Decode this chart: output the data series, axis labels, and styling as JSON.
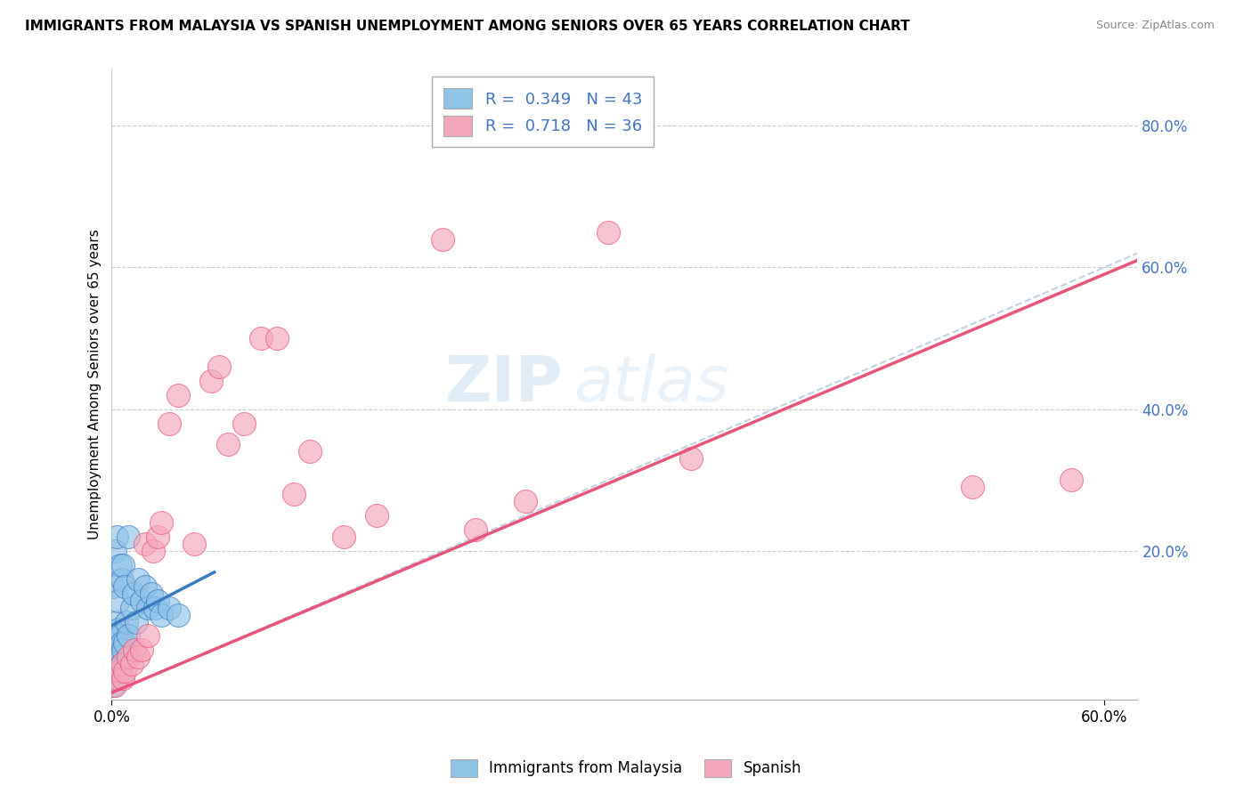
{
  "title": "IMMIGRANTS FROM MALAYSIA VS SPANISH UNEMPLOYMENT AMONG SENIORS OVER 65 YEARS CORRELATION CHART",
  "source": "Source: ZipAtlas.com",
  "ylabel": "Unemployment Among Seniors over 65 years",
  "legend_label1": "Immigrants from Malaysia",
  "legend_label2": "Spanish",
  "r1": 0.349,
  "n1": 43,
  "r2": 0.718,
  "n2": 36,
  "xlim": [
    0.0,
    0.62
  ],
  "ylim": [
    -0.01,
    0.88
  ],
  "color_blue": "#8fc3e8",
  "color_pink": "#f4a7bb",
  "color_blue_line": "#3a7bbf",
  "color_pink_line": "#e8547a",
  "color_diag": "#b0c8e0",
  "watermark_zip": "ZIP",
  "watermark_atlas": "atlas",
  "scatter_blue_x": [
    0.001,
    0.001,
    0.001,
    0.001,
    0.002,
    0.002,
    0.002,
    0.002,
    0.002,
    0.003,
    0.003,
    0.003,
    0.003,
    0.004,
    0.004,
    0.004,
    0.004,
    0.005,
    0.005,
    0.005,
    0.006,
    0.006,
    0.006,
    0.007,
    0.007,
    0.008,
    0.008,
    0.009,
    0.01,
    0.01,
    0.012,
    0.013,
    0.015,
    0.016,
    0.018,
    0.02,
    0.022,
    0.024,
    0.026,
    0.028,
    0.03,
    0.035,
    0.04
  ],
  "scatter_blue_y": [
    0.01,
    0.02,
    0.03,
    0.15,
    0.02,
    0.04,
    0.06,
    0.08,
    0.2,
    0.05,
    0.07,
    0.1,
    0.22,
    0.03,
    0.06,
    0.09,
    0.13,
    0.05,
    0.08,
    0.18,
    0.04,
    0.07,
    0.16,
    0.06,
    0.18,
    0.07,
    0.15,
    0.1,
    0.08,
    0.22,
    0.12,
    0.14,
    0.1,
    0.16,
    0.13,
    0.15,
    0.12,
    0.14,
    0.12,
    0.13,
    0.11,
    0.12,
    0.11
  ],
  "scatter_pink_x": [
    0.002,
    0.003,
    0.005,
    0.006,
    0.007,
    0.008,
    0.01,
    0.012,
    0.014,
    0.016,
    0.018,
    0.02,
    0.022,
    0.025,
    0.028,
    0.03,
    0.035,
    0.04,
    0.05,
    0.06,
    0.065,
    0.07,
    0.08,
    0.09,
    0.1,
    0.11,
    0.12,
    0.14,
    0.16,
    0.2,
    0.22,
    0.25,
    0.3,
    0.35,
    0.52,
    0.58
  ],
  "scatter_pink_y": [
    0.01,
    0.02,
    0.03,
    0.04,
    0.02,
    0.03,
    0.05,
    0.04,
    0.06,
    0.05,
    0.06,
    0.21,
    0.08,
    0.2,
    0.22,
    0.24,
    0.38,
    0.42,
    0.21,
    0.44,
    0.46,
    0.35,
    0.38,
    0.5,
    0.5,
    0.28,
    0.34,
    0.22,
    0.25,
    0.64,
    0.23,
    0.27,
    0.65,
    0.33,
    0.29,
    0.3
  ],
  "blue_line_x0": 0.0,
  "blue_line_y0": 0.095,
  "blue_line_x1": 0.062,
  "blue_line_y1": 0.17,
  "pink_line_x0": 0.0,
  "pink_line_y0": 0.0,
  "pink_line_x1": 0.62,
  "pink_line_y1": 0.61
}
